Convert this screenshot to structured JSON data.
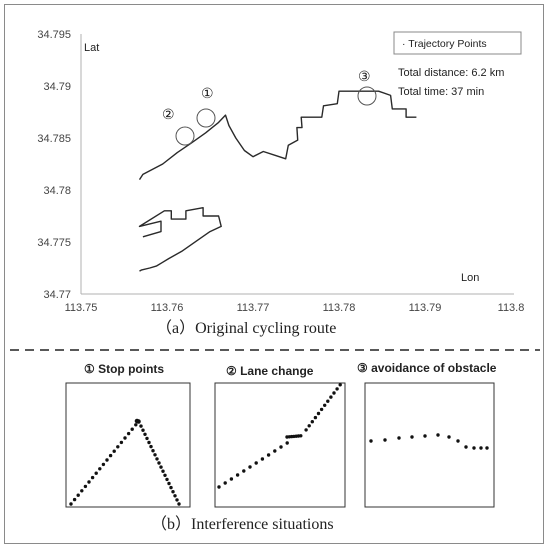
{
  "chart_data": {
    "type": "line",
    "ylabel": "Lat",
    "xlabel": "Lon",
    "xlim": [
      113.75,
      113.8
    ],
    "ylim": [
      34.77,
      34.795
    ],
    "x_ticks": [
      "113.75",
      "113.76",
      "113.77",
      "113.78",
      "113.79",
      "113.8"
    ],
    "y_ticks": [
      "34.795",
      "34.79",
      "34.785",
      "34.78",
      "34.775",
      "34.77"
    ],
    "x_tick_values": [
      113.75,
      113.76,
      113.77,
      113.78,
      113.79,
      113.8
    ],
    "y_tick_values": [
      34.795,
      34.79,
      34.785,
      34.78,
      34.775,
      34.77
    ],
    "legend": "· Trajectory Points",
    "legend_position": "top-right",
    "annotations": [
      "Total distance:  6.2 km",
      "Total time:  37 min"
    ],
    "series": [
      {
        "x": [
          113.7572,
          113.7593,
          113.7593,
          113.7568,
          113.7597,
          113.7605,
          113.7605,
          113.7622,
          113.7622,
          113.7642,
          113.7642,
          113.766,
          113.7663,
          113.765,
          113.7636,
          113.7617,
          113.7602,
          113.7594,
          113.7588,
          113.758,
          113.757,
          113.7568
        ],
        "y": [
          34.7755,
          34.776,
          34.777,
          34.7765,
          34.778,
          34.778,
          34.7772,
          34.7772,
          34.778,
          34.7783,
          34.7775,
          34.7775,
          34.7765,
          34.776,
          34.7752,
          34.7741,
          34.7734,
          34.773,
          34.7727,
          34.7725,
          34.7723,
          34.7722
        ]
      },
      {
        "x": [
          113.7568,
          113.7572,
          113.7595,
          113.7612,
          113.7628,
          113.7645,
          113.766,
          113.7668,
          113.7672,
          113.768,
          113.769,
          113.77,
          113.7712,
          113.7727,
          113.7738,
          113.7741,
          113.7752,
          113.7751,
          113.7757,
          113.7756,
          113.778,
          113.7782,
          113.7798,
          113.78,
          113.7846,
          113.786,
          113.7862,
          113.7878,
          113.7878,
          113.789
        ],
        "y": [
          34.781,
          34.7815,
          34.7825,
          34.7836,
          34.7845,
          34.7855,
          34.7865,
          34.7872,
          34.7862,
          34.785,
          34.7838,
          34.7832,
          34.7837,
          34.7833,
          34.783,
          34.7843,
          34.7848,
          34.786,
          34.786,
          34.787,
          34.787,
          34.7881,
          34.7883,
          34.7895,
          34.7895,
          34.7891,
          34.7878,
          34.7878,
          34.787,
          34.787
        ]
      }
    ],
    "markers": [
      "①",
      "②",
      "③"
    ]
  },
  "caption_a": "（a）Original cycling route",
  "caption_b": "（b）Interference situations",
  "panels": {
    "p1": {
      "title": "①  Stop points"
    },
    "p2": {
      "title": "②  Lane change"
    },
    "p3": {
      "title": "③  avoidance of obstacle"
    }
  },
  "colors": {
    "line": "#2a2a2a",
    "axis": "#b0b0b0",
    "frame": "#8a8a8a",
    "text": "#444444"
  }
}
